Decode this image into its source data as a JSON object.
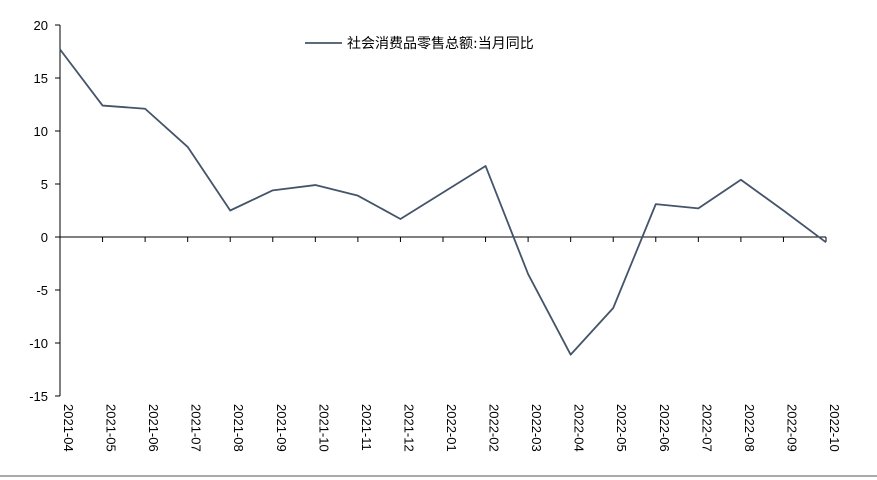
{
  "chart_data": {
    "type": "line",
    "x": [
      "2021-04",
      "2021-05",
      "2021-06",
      "2021-07",
      "2021-08",
      "2021-09",
      "2021-10",
      "2021-11",
      "2021-12",
      "2022-01",
      "2022-02",
      "2022-03",
      "2022-04",
      "2022-05",
      "2022-06",
      "2022-07",
      "2022-08",
      "2022-09",
      "2022-10"
    ],
    "series": [
      {
        "name": "社会消费品零售总额:当月同比",
        "color": "#44546a",
        "values": [
          17.7,
          12.4,
          12.1,
          8.5,
          2.5,
          4.4,
          4.9,
          3.9,
          1.7,
          4.2,
          6.7,
          -3.5,
          -11.1,
          -6.7,
          3.1,
          2.7,
          5.4,
          2.5,
          -0.5
        ]
      }
    ],
    "yticks": [
      20,
      15,
      10,
      5,
      0,
      -5,
      -10,
      -15
    ],
    "ylim": [
      -15,
      20
    ],
    "grid": false,
    "legend_position": "top-center"
  }
}
